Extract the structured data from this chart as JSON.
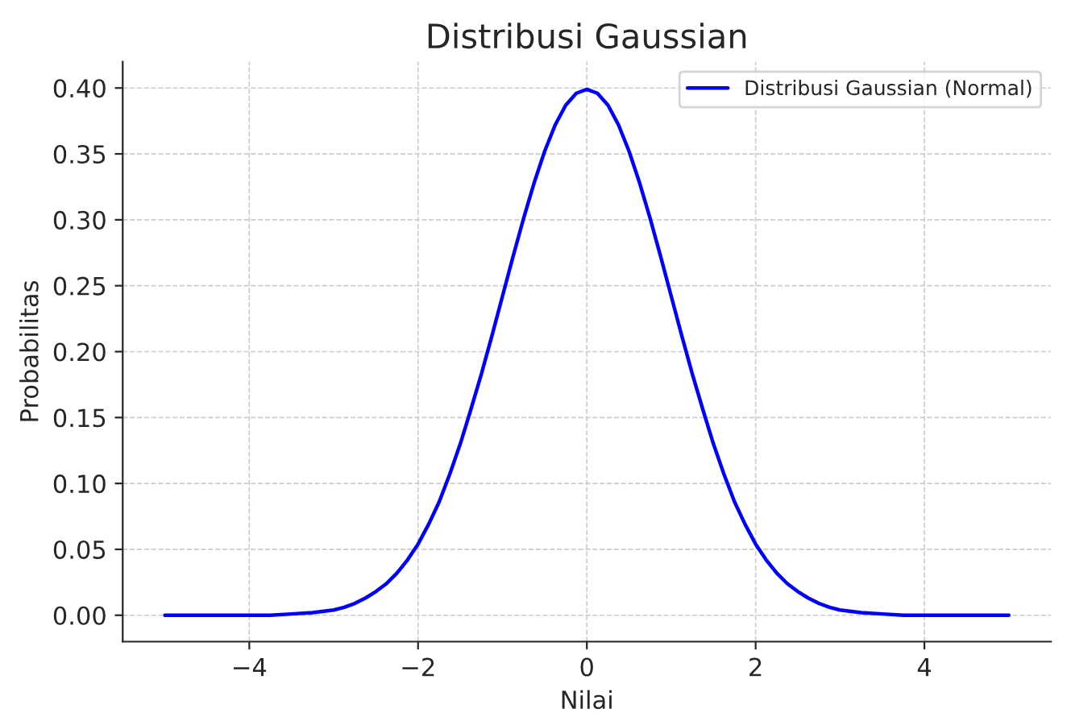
{
  "chart_data": {
    "type": "line",
    "title": "Distribusi Gaussian",
    "xlabel": "Nilai",
    "ylabel": "Probabilitas",
    "series": [
      {
        "name": "Distribusi Gaussian (Normal)",
        "color": "#0000ff",
        "x": [
          -5,
          -4.75,
          -4.5,
          -4.25,
          -4,
          -3.75,
          -3.5,
          -3.25,
          -3,
          -2.875,
          -2.75,
          -2.625,
          -2.5,
          -2.375,
          -2.25,
          -2.125,
          -2,
          -1.875,
          -1.75,
          -1.625,
          -1.5,
          -1.375,
          -1.25,
          -1.125,
          -1,
          -0.875,
          -0.75,
          -0.625,
          -0.5,
          -0.375,
          -0.25,
          -0.125,
          0,
          0.125,
          0.25,
          0.375,
          0.5,
          0.625,
          0.75,
          0.875,
          1,
          1.125,
          1.25,
          1.375,
          1.5,
          1.625,
          1.75,
          1.875,
          2,
          2.125,
          2.25,
          2.375,
          2.5,
          2.625,
          2.75,
          2.875,
          3,
          3.25,
          3.5,
          3.75,
          4,
          4.25,
          4.5,
          4.75,
          5
        ],
        "values": [
          0,
          0,
          0,
          0,
          0,
          0,
          0.001,
          0.002,
          0.004,
          0.006,
          0.009,
          0.013,
          0.018,
          0.024,
          0.032,
          0.042,
          0.054,
          0.069,
          0.086,
          0.107,
          0.13,
          0.156,
          0.183,
          0.212,
          0.242,
          0.272,
          0.301,
          0.328,
          0.352,
          0.372,
          0.387,
          0.396,
          0.399,
          0.396,
          0.387,
          0.372,
          0.352,
          0.328,
          0.301,
          0.272,
          0.242,
          0.212,
          0.183,
          0.156,
          0.13,
          0.107,
          0.086,
          0.069,
          0.054,
          0.042,
          0.032,
          0.024,
          0.018,
          0.013,
          0.009,
          0.006,
          0.004,
          0.002,
          0.001,
          0,
          0,
          0,
          0,
          0,
          0
        ]
      }
    ],
    "xlim": [
      -5.5,
      5.5
    ],
    "ylim": [
      -0.02,
      0.42
    ],
    "xticks": [
      {
        "value": -4,
        "label": "−4"
      },
      {
        "value": -2,
        "label": "−2"
      },
      0,
      2,
      4
    ],
    "yticks": [
      {
        "value": 0,
        "label": "0.00"
      },
      {
        "value": 0.05,
        "label": "0.05"
      },
      {
        "value": 0.1,
        "label": "0.10"
      },
      {
        "value": 0.15,
        "label": "0.15"
      },
      {
        "value": 0.2,
        "label": "0.20"
      },
      {
        "value": 0.25,
        "label": "0.25"
      },
      {
        "value": 0.3,
        "label": "0.30"
      },
      {
        "value": 0.35,
        "label": "0.35"
      },
      {
        "value": 0.4,
        "label": "0.40"
      }
    ],
    "grid": true,
    "legend": "top right",
    "line_style": "solid",
    "marker": "none"
  }
}
